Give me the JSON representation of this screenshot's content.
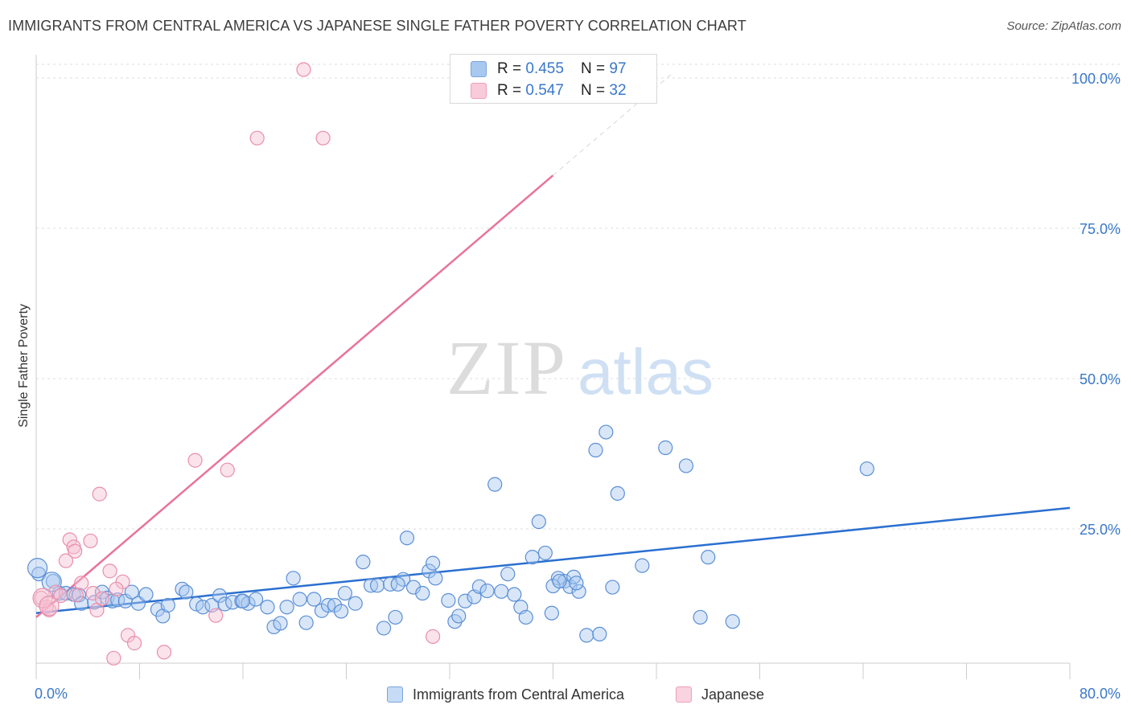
{
  "title": "IMMIGRANTS FROM CENTRAL AMERICA VS JAPANESE SINGLE FATHER POVERTY CORRELATION CHART",
  "source": "Source: ZipAtlas.com",
  "watermark": {
    "zip": "ZIP",
    "atlas": "atlas"
  },
  "legend_top": {
    "rows": [
      {
        "r_label": "R = ",
        "r_value": "0.455",
        "n_label": "N = ",
        "n_value": "97",
        "color": "#a8c8f0"
      },
      {
        "r_label": "R = ",
        "r_value": "0.547",
        "n_label": "N = ",
        "n_value": "32",
        "color": "#f5b8cb"
      }
    ]
  },
  "legend_bottom": [
    {
      "label": "Immigrants from Central America",
      "color": "#a8c8f0"
    },
    {
      "label": "Japanese",
      "color": "#f5b8cb"
    }
  ],
  "colors": {
    "blue": "#4a86d4",
    "blue_line": "#2a6fd0",
    "pink": "#e882a3",
    "pink_line": "#e8739a",
    "axis_text": "#3a78c9",
    "grid": "#dddddd"
  },
  "chart_data": {
    "type": "scatter",
    "title": "IMMIGRANTS FROM CENTRAL AMERICA VS JAPANESE SINGLE FATHER POVERTY CORRELATION CHART",
    "xlabel": "",
    "ylabel": "Single Father Poverty",
    "xlim": [
      0,
      80
    ],
    "ylim": [
      0,
      105
    ],
    "x_tick_labels": [
      "0.0%",
      "80.0%"
    ],
    "y_ticks": [
      25,
      50,
      75,
      100
    ],
    "y_tick_labels": [
      "25.0%",
      "50.0%",
      "75.0%",
      "100.0%"
    ],
    "grid": true,
    "series": [
      {
        "name": "Immigrants from Central America",
        "color": "#4a86d4",
        "trend": {
          "x": [
            0,
            80
          ],
          "y": [
            11.0,
            28.5
          ]
        },
        "points": [
          [
            0.2,
            17.5
          ],
          [
            1.3,
            16.3
          ],
          [
            1.8,
            14.3
          ],
          [
            2.3,
            14.3
          ],
          [
            2.9,
            14.1
          ],
          [
            3.3,
            14.0
          ],
          [
            3.5,
            12.6
          ],
          [
            4.5,
            12.8
          ],
          [
            5.1,
            14.5
          ],
          [
            5.5,
            13.5
          ],
          [
            5.9,
            13.0
          ],
          [
            6.3,
            13.2
          ],
          [
            6.9,
            13.0
          ],
          [
            7.4,
            14.5
          ],
          [
            7.9,
            12.6
          ],
          [
            8.5,
            14.1
          ],
          [
            9.4,
            11.6
          ],
          [
            9.8,
            10.5
          ],
          [
            10.2,
            12.3
          ],
          [
            11.3,
            15.0
          ],
          [
            11.6,
            14.5
          ],
          [
            12.4,
            12.5
          ],
          [
            12.9,
            12.0
          ],
          [
            13.6,
            12.3
          ],
          [
            14.2,
            13.9
          ],
          [
            14.6,
            12.5
          ],
          [
            15.2,
            12.8
          ],
          [
            15.9,
            13.0
          ],
          [
            16.4,
            12.6
          ],
          [
            17.0,
            13.3
          ],
          [
            17.9,
            12.0
          ],
          [
            18.4,
            8.7
          ],
          [
            18.9,
            9.3
          ],
          [
            19.4,
            12.0
          ],
          [
            19.9,
            16.8
          ],
          [
            20.4,
            13.3
          ],
          [
            20.9,
            9.4
          ],
          [
            21.5,
            13.3
          ],
          [
            22.1,
            11.4
          ],
          [
            22.6,
            12.3
          ],
          [
            23.1,
            12.3
          ],
          [
            23.6,
            11.3
          ],
          [
            23.9,
            14.3
          ],
          [
            24.7,
            12.6
          ],
          [
            25.3,
            19.5
          ],
          [
            25.9,
            15.6
          ],
          [
            26.4,
            15.6
          ],
          [
            26.9,
            8.5
          ],
          [
            27.4,
            15.8
          ],
          [
            27.8,
            10.3
          ],
          [
            28.4,
            16.6
          ],
          [
            28.7,
            23.5
          ],
          [
            29.2,
            15.3
          ],
          [
            29.9,
            14.3
          ],
          [
            30.4,
            18.0
          ],
          [
            30.7,
            19.3
          ],
          [
            30.9,
            16.8
          ],
          [
            31.9,
            13.1
          ],
          [
            32.4,
            9.6
          ],
          [
            32.7,
            10.5
          ],
          [
            33.2,
            13.0
          ],
          [
            33.9,
            13.7
          ],
          [
            34.3,
            15.4
          ],
          [
            34.9,
            14.7
          ],
          [
            35.5,
            32.4
          ],
          [
            36.0,
            14.6
          ],
          [
            36.5,
            17.5
          ],
          [
            37.0,
            14.1
          ],
          [
            37.5,
            12.0
          ],
          [
            37.9,
            10.3
          ],
          [
            38.4,
            20.3
          ],
          [
            38.9,
            26.2
          ],
          [
            39.4,
            21.0
          ],
          [
            39.9,
            11.0
          ],
          [
            40.4,
            16.8
          ],
          [
            40.9,
            16.3
          ],
          [
            41.3,
            15.4
          ],
          [
            42.0,
            14.6
          ],
          [
            42.6,
            7.3
          ],
          [
            43.3,
            38.1
          ],
          [
            43.6,
            7.5
          ],
          [
            44.1,
            41.1
          ],
          [
            44.6,
            15.3
          ],
          [
            45.0,
            30.9
          ],
          [
            46.9,
            18.9
          ],
          [
            48.7,
            38.5
          ],
          [
            50.3,
            35.5
          ],
          [
            51.4,
            10.3
          ],
          [
            52.0,
            20.3
          ],
          [
            53.9,
            9.6
          ],
          [
            64.3,
            35.0
          ],
          [
            40.0,
            15.5
          ],
          [
            40.5,
            16.3
          ],
          [
            41.6,
            17.0
          ],
          [
            41.8,
            16.0
          ],
          [
            16.0,
            13.0
          ],
          [
            28.0,
            15.8
          ]
        ],
        "large_points": [
          [
            0.1,
            18.5
          ],
          [
            1.2,
            16.2
          ]
        ]
      },
      {
        "name": "Japanese",
        "color": "#e882a3",
        "trend": {
          "x": [
            0,
            40
          ],
          "y": [
            10.3,
            83.8
          ]
        },
        "points": [
          [
            0.4,
            13.5
          ],
          [
            0.8,
            12.0
          ],
          [
            1.0,
            11.5
          ],
          [
            1.5,
            14.5
          ],
          [
            1.9,
            13.9
          ],
          [
            2.3,
            19.7
          ],
          [
            2.6,
            23.2
          ],
          [
            2.9,
            22.0
          ],
          [
            3.0,
            21.3
          ],
          [
            3.1,
            14.0
          ],
          [
            3.5,
            16.0
          ],
          [
            4.2,
            23.0
          ],
          [
            4.4,
            14.3
          ],
          [
            4.7,
            11.5
          ],
          [
            4.9,
            30.8
          ],
          [
            5.1,
            13.4
          ],
          [
            5.7,
            18.0
          ],
          [
            6.0,
            3.5
          ],
          [
            6.7,
            16.2
          ],
          [
            7.1,
            7.3
          ],
          [
            7.6,
            6.0
          ],
          [
            9.9,
            4.5
          ],
          [
            12.3,
            36.4
          ],
          [
            13.9,
            10.6
          ],
          [
            14.8,
            34.8
          ],
          [
            17.1,
            90.0
          ],
          [
            20.7,
            101.4
          ],
          [
            22.2,
            90.0
          ],
          [
            30.7,
            7.1
          ],
          [
            6.2,
            15.0
          ]
        ],
        "large_points": [
          [
            0.5,
            13.5
          ],
          [
            1.0,
            12.2
          ]
        ]
      }
    ]
  }
}
